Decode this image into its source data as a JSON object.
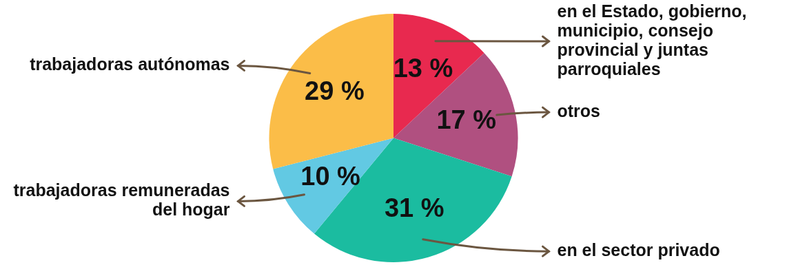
{
  "chart_data": {
    "type": "pie",
    "categories": [
      "en el Estado, gobierno, municipio, consejo provincial y juntas parroquiales",
      "otros",
      "en el sector privado",
      "trabajadoras remuneradas del hogar",
      "trabajadoras autónomas"
    ],
    "values": [
      13,
      17,
      31,
      10,
      29
    ],
    "value_labels": [
      "13 %",
      "17 %",
      "31 %",
      "10 %",
      "29 %"
    ],
    "colors": [
      "#e8294f",
      "#b05080",
      "#1bbca0",
      "#62c9e3",
      "#fbbd48"
    ],
    "legend": false
  }
}
